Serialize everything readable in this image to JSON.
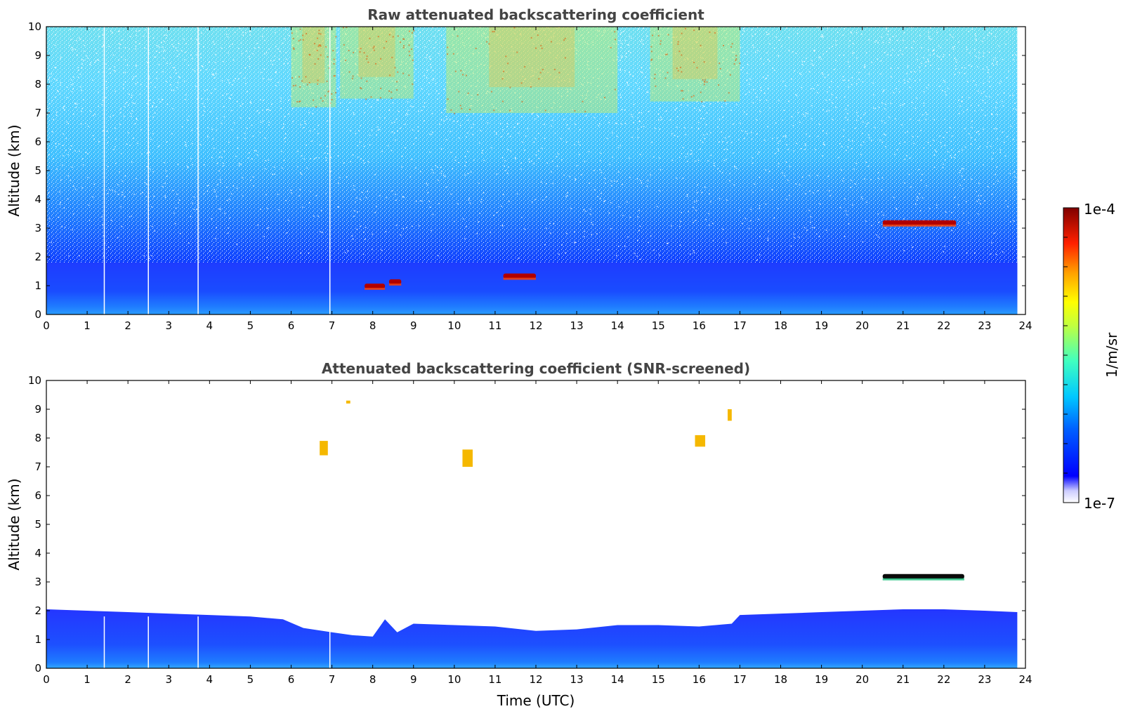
{
  "chart_data": [
    {
      "type": "heatmap",
      "title": "Raw attenuated backscattering coefficient",
      "xlabel": "",
      "ylabel": "Altitude (km)",
      "xlim": [
        0,
        24
      ],
      "ylim": [
        0,
        10
      ],
      "xticks": [
        "0",
        "1",
        "2",
        "3",
        "4",
        "5",
        "6",
        "7",
        "8",
        "9",
        "10",
        "11",
        "12",
        "13",
        "14",
        "15",
        "16",
        "17",
        "18",
        "19",
        "20",
        "21",
        "22",
        "23",
        "24"
      ],
      "yticks": [
        "0",
        "1",
        "2",
        "3",
        "4",
        "5",
        "6",
        "7",
        "8",
        "9",
        "10"
      ],
      "data_end_hour": 23.8,
      "data_gaps_hours": [
        1.42,
        2.5,
        3.72,
        6.95
      ],
      "features": [
        {
          "kind": "boundary_layer",
          "start_hour": 0,
          "end_hour": 23.8,
          "top_km": 1.8
        },
        {
          "kind": "ice_cloud",
          "start_hour": 6.0,
          "end_hour": 7.1,
          "base_km": 7.2,
          "top_km": 10
        },
        {
          "kind": "ice_cloud",
          "start_hour": 7.2,
          "end_hour": 9.0,
          "base_km": 7.5,
          "top_km": 10
        },
        {
          "kind": "ice_cloud",
          "start_hour": 9.8,
          "end_hour": 14.0,
          "base_km": 7.0,
          "top_km": 10
        },
        {
          "kind": "ice_cloud",
          "start_hour": 14.8,
          "end_hour": 17.0,
          "base_km": 7.4,
          "top_km": 10
        },
        {
          "kind": "water_cloud",
          "start_hour": 7.8,
          "end_hour": 8.3,
          "altitude_km": 1.0
        },
        {
          "kind": "water_cloud",
          "start_hour": 8.4,
          "end_hour": 8.7,
          "altitude_km": 1.15
        },
        {
          "kind": "water_cloud",
          "start_hour": 11.2,
          "end_hour": 12.0,
          "altitude_km": 1.35
        },
        {
          "kind": "water_cloud",
          "start_hour": 20.5,
          "end_hour": 22.3,
          "altitude_km": 3.2
        }
      ]
    },
    {
      "type": "heatmap",
      "title": "Attenuated backscattering coefficient (SNR-screened)",
      "xlabel": "Time (UTC)",
      "ylabel": "Altitude (km)",
      "xlim": [
        0,
        24
      ],
      "ylim": [
        0,
        10
      ],
      "xticks": [
        "0",
        "1",
        "2",
        "3",
        "4",
        "5",
        "6",
        "7",
        "8",
        "9",
        "10",
        "11",
        "12",
        "13",
        "14",
        "15",
        "16",
        "17",
        "18",
        "19",
        "20",
        "21",
        "22",
        "23",
        "24"
      ],
      "yticks": [
        "0",
        "1",
        "2",
        "3",
        "4",
        "5",
        "6",
        "7",
        "8",
        "9",
        "10"
      ],
      "data_end_hour": 23.8,
      "data_gaps_hours": [
        1.42,
        2.5,
        3.72,
        6.95
      ],
      "boundary_layer_top_km": [
        [
          0,
          2.05
        ],
        [
          1,
          2.0
        ],
        [
          2,
          1.95
        ],
        [
          3,
          1.9
        ],
        [
          4,
          1.85
        ],
        [
          5,
          1.8
        ],
        [
          5.8,
          1.7
        ],
        [
          6.3,
          1.4
        ],
        [
          7.0,
          1.25
        ],
        [
          7.5,
          1.15
        ],
        [
          8.0,
          1.1
        ],
        [
          8.3,
          1.7
        ],
        [
          8.6,
          1.25
        ],
        [
          9.0,
          1.55
        ],
        [
          10.0,
          1.5
        ],
        [
          11.0,
          1.45
        ],
        [
          12.0,
          1.3
        ],
        [
          13.0,
          1.35
        ],
        [
          14.0,
          1.5
        ],
        [
          15.0,
          1.5
        ],
        [
          16.0,
          1.45
        ],
        [
          16.8,
          1.55
        ],
        [
          17.0,
          1.85
        ],
        [
          18.0,
          1.9
        ],
        [
          19.0,
          1.95
        ],
        [
          20.0,
          2.0
        ],
        [
          21.0,
          2.05
        ],
        [
          22.0,
          2.05
        ],
        [
          23.0,
          2.0
        ],
        [
          23.8,
          1.95
        ]
      ],
      "features": [
        {
          "kind": "cloud_fragment",
          "start_hour": 6.7,
          "end_hour": 6.9,
          "base_km": 7.4,
          "top_km": 7.9
        },
        {
          "kind": "cloud_fragment",
          "start_hour": 7.35,
          "end_hour": 7.45,
          "base_km": 9.2,
          "top_km": 9.3
        },
        {
          "kind": "cloud_fragment",
          "start_hour": 10.2,
          "end_hour": 10.45,
          "base_km": 7.0,
          "top_km": 7.6
        },
        {
          "kind": "cloud_fragment",
          "start_hour": 15.9,
          "end_hour": 16.15,
          "base_km": 7.7,
          "top_km": 8.1
        },
        {
          "kind": "cloud_fragment",
          "start_hour": 16.7,
          "end_hour": 16.8,
          "base_km": 8.6,
          "top_km": 9.0
        },
        {
          "kind": "water_cloud",
          "start_hour": 20.5,
          "end_hour": 22.5,
          "altitude_km": 3.2
        }
      ]
    }
  ],
  "colorbar": {
    "label": "1/m/sr",
    "min_label": "1e-7",
    "max_label": "1e-4",
    "scale": "log",
    "colormap": "jet"
  }
}
